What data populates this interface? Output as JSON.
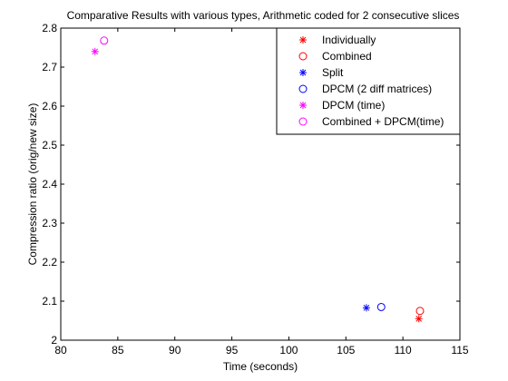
{
  "chart_data": {
    "type": "scatter",
    "title": "Comparative Results with various types, Arithmetic coded for 2 consecutive slices",
    "xlabel": "Time (seconds)",
    "ylabel": "Compression ratio (orig/new size)",
    "xlim": [
      80,
      115
    ],
    "ylim": [
      2,
      2.8
    ],
    "xticks": [
      80,
      85,
      90,
      95,
      100,
      105,
      110,
      115
    ],
    "yticks": [
      2,
      2.1,
      2.2,
      2.3,
      2.4,
      2.5,
      2.6,
      2.7,
      2.8
    ],
    "grid": false,
    "legend_position": "top-right",
    "series": [
      {
        "name": "Individually",
        "marker": "asterisk",
        "color": "#ff0000",
        "points": [
          [
            111.4,
            2.055
          ]
        ]
      },
      {
        "name": "Combined",
        "marker": "circle",
        "color": "#ff0000",
        "points": [
          [
            111.5,
            2.075
          ]
        ]
      },
      {
        "name": "Split",
        "marker": "asterisk",
        "color": "#0000ff",
        "points": [
          [
            106.8,
            2.083
          ]
        ]
      },
      {
        "name": "DPCM (2 diff matrices)",
        "marker": "circle",
        "color": "#0000ff",
        "points": [
          [
            108.1,
            2.085
          ]
        ]
      },
      {
        "name": "DPCM (time)",
        "marker": "asterisk",
        "color": "#ff00ff",
        "points": [
          [
            83.0,
            2.74
          ]
        ]
      },
      {
        "name": "Combined + DPCM(time)",
        "marker": "circle",
        "color": "#ff00ff",
        "points": [
          [
            83.8,
            2.768
          ]
        ]
      }
    ]
  }
}
